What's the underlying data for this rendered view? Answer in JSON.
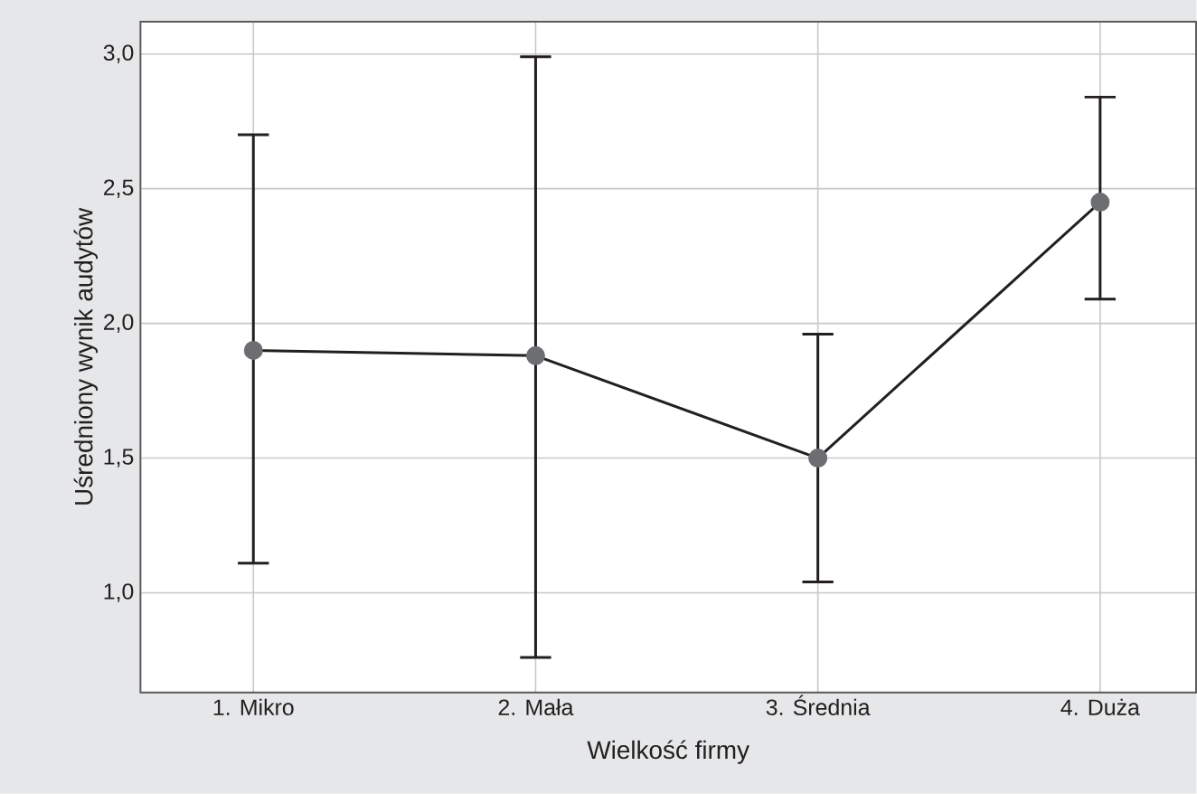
{
  "chart_data": {
    "type": "line",
    "xlabel": "Wielkość firmy",
    "ylabel": "Uśredniony wynik audytów",
    "categories": [
      "1. Mikro",
      "2. Mała",
      "3. Średnia",
      "4. Duża"
    ],
    "series": [
      {
        "color": "#231f20",
        "values": [
          1.9,
          1.88,
          1.5,
          2.45
        ],
        "errors": [
          [
            1.11,
            2.7
          ],
          [
            0.76,
            2.99
          ],
          [
            1.04,
            1.96
          ],
          [
            2.09,
            2.84
          ]
        ]
      }
    ],
    "ylim": [
      0.63,
      3.12
    ],
    "yticks": [
      {
        "value": 1.0,
        "label": "1,0"
      },
      {
        "value": 1.5,
        "label": "1,5"
      },
      {
        "value": 2.0,
        "label": "2,0"
      },
      {
        "value": 2.5,
        "label": "2,5"
      },
      {
        "value": 3.0,
        "label": "3,0"
      }
    ],
    "grid": true,
    "marker": "circle",
    "line_style": "solid"
  }
}
